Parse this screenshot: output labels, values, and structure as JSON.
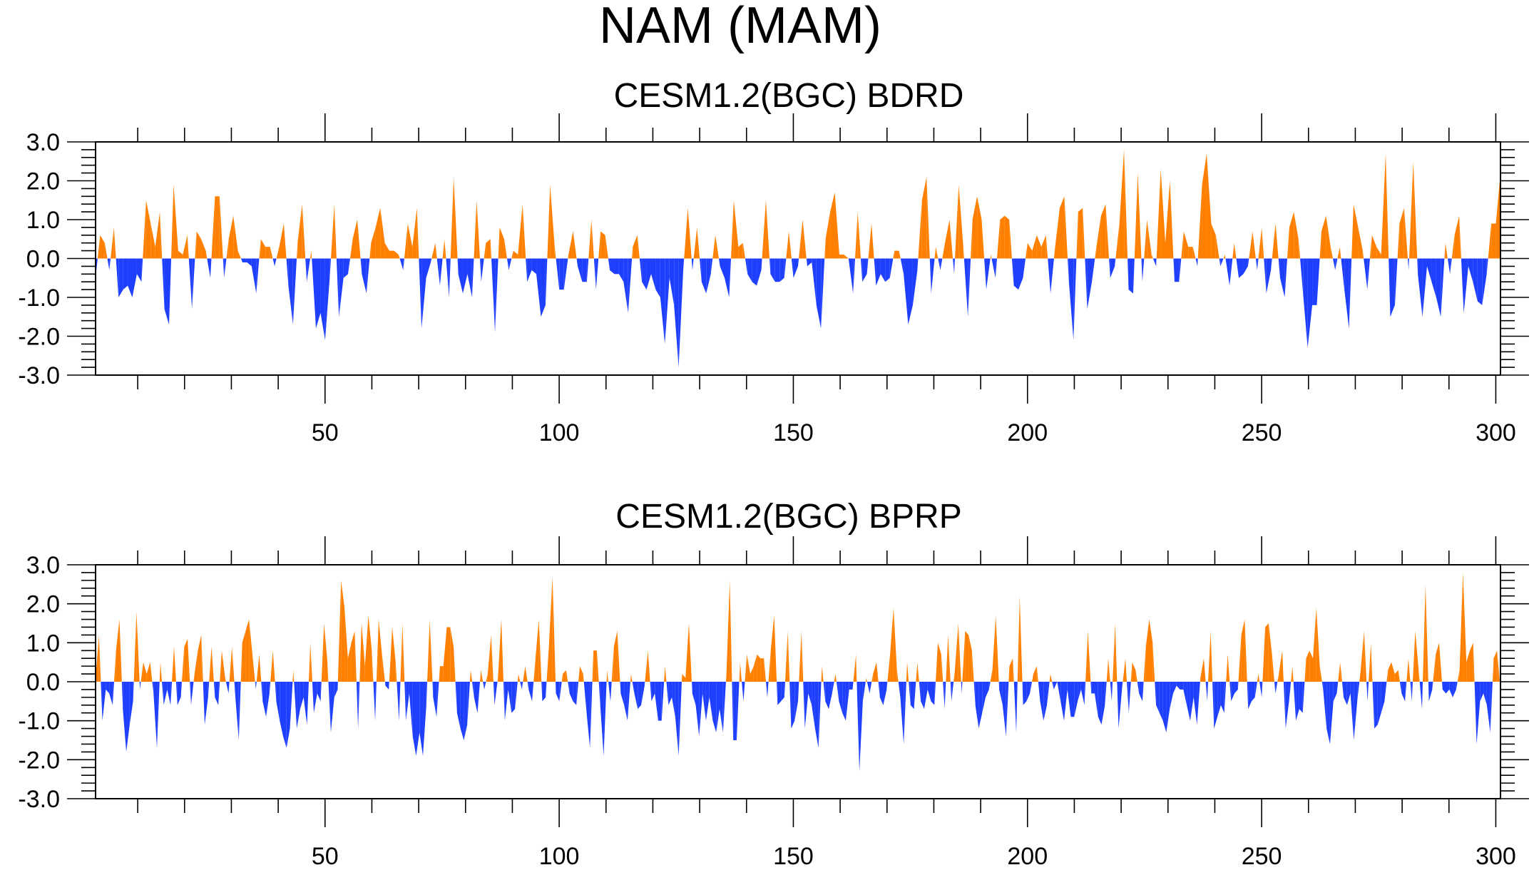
{
  "figure": {
    "title": "NAM (MAM)"
  },
  "colors": {
    "positive": "#ff8000",
    "negative": "#1f3fff",
    "axes": "#000000"
  },
  "chart_data": [
    {
      "type": "area",
      "title": "CESM1.2(BGC) BDRD",
      "xlabel": "",
      "ylabel": "",
      "xlim": [
        1,
        301
      ],
      "ylim": [
        -3.0,
        3.0
      ],
      "xticks": [
        50,
        100,
        150,
        200,
        250,
        300
      ],
      "yticks": [
        3.0,
        2.0,
        1.0,
        0.0,
        -1.0,
        -2.0,
        -3.0
      ],
      "ytick_labels": [
        "3.0",
        "2.0",
        "1.0",
        "0.0",
        "-1.0",
        "-2.0",
        "-3.0"
      ],
      "xtick_labels": [
        "50",
        "100",
        "150",
        "200",
        "250",
        "300"
      ],
      "grid": false,
      "fill": {
        "above_zero": "#ff8000",
        "below_zero": "#1f3fff"
      },
      "series": [
        {
          "x_start": 1,
          "values": [
            -0.5,
            0.6,
            0.4,
            -0.3,
            0.8,
            -1.0,
            -0.8,
            -0.7,
            -1.0,
            -0.4,
            -0.6,
            1.5,
            0.9,
            0.3,
            1.2,
            -1.3,
            -1.7,
            1.9,
            0.2,
            0.1,
            0.6,
            -1.3,
            0.7,
            0.5,
            0.2,
            -0.5,
            1.6,
            1.6,
            -0.5,
            0.5,
            1.1,
            0.2,
            -0.1,
            -0.1,
            -0.2,
            -0.9,
            0.5,
            0.3,
            0.3,
            -0.2,
            0.3,
            0.9,
            -0.7,
            -1.7,
            0.4,
            1.4,
            -0.6,
            0.2,
            -1.8,
            -1.4,
            -2.1,
            -0.5,
            1.4,
            -1.5,
            -0.5,
            -0.4,
            0.5,
            1.0,
            -0.4,
            -0.9,
            0.4,
            0.8,
            1.3,
            0.4,
            0.2,
            0.2,
            0.1,
            -0.3,
            0.9,
            0.3,
            1.3,
            -1.8,
            -0.5,
            -0.1,
            0.4,
            -0.7,
            0.5,
            -1.0,
            2.1,
            -0.4,
            -0.9,
            -0.4,
            -1.0,
            1.5,
            -0.6,
            0.4,
            0.5,
            -1.9,
            0.8,
            0.5,
            -0.3,
            0.2,
            0.1,
            1.4,
            -0.6,
            -0.3,
            -0.4,
            -1.5,
            -1.2,
            1.9,
            0.3,
            -0.8,
            -0.8,
            0.1,
            0.7,
            -0.2,
            -0.6,
            -0.6,
            1.0,
            -0.8,
            0.7,
            0.6,
            -0.3,
            -0.4,
            -0.4,
            -0.6,
            -1.4,
            0.3,
            0.6,
            -0.6,
            -0.8,
            -0.4,
            -0.8,
            -1.0,
            -2.2,
            -0.5,
            -1.2,
            -2.8,
            -0.3,
            1.3,
            -0.3,
            0.8,
            -0.6,
            -0.9,
            -0.4,
            0.6,
            -0.2,
            -0.5,
            -1.0,
            1.5,
            0.3,
            0.4,
            -0.4,
            -0.6,
            -0.7,
            -0.3,
            1.5,
            -0.4,
            -0.6,
            -0.6,
            -0.5,
            0.7,
            -0.5,
            -0.2,
            1.0,
            -0.2,
            -0.1,
            -1.2,
            -1.8,
            0.5,
            1.2,
            1.7,
            0.1,
            0.1,
            0.0,
            -0.9,
            1.2,
            -0.6,
            -0.4,
            0.9,
            -0.7,
            -0.4,
            -0.6,
            -0.5,
            0.2,
            0.2,
            -0.4,
            -1.7,
            -1.2,
            -0.3,
            1.5,
            2.1,
            -0.9,
            0.3,
            -0.3,
            0.4,
            1.0,
            -0.4,
            1.9,
            0.3,
            -1.5,
            1.0,
            1.6,
            1.0,
            -0.8,
            0.1,
            -0.5,
            1.0,
            1.1,
            1.0,
            -0.7,
            -0.8,
            -0.5,
            0.4,
            0.2,
            0.6,
            0.3,
            0.6,
            -0.9,
            0.3,
            1.3,
            1.6,
            -0.6,
            -2.1,
            1.2,
            1.3,
            -1.3,
            -0.6,
            0.3,
            1.1,
            1.4,
            -0.5,
            -0.2,
            0.9,
            2.8,
            -0.8,
            -0.9,
            2.2,
            -0.6,
            1.0,
            0.1,
            -0.2,
            2.3,
            0.4,
            2.0,
            -0.6,
            -0.6,
            0.7,
            0.3,
            0.3,
            -0.2,
            1.9,
            2.7,
            0.9,
            0.6,
            -0.2,
            0.1,
            -0.7,
            0.4,
            -0.5,
            -0.4,
            -0.2,
            0.7,
            -0.3,
            0.8,
            -0.9,
            -0.3,
            0.9,
            -0.5,
            -1.0,
            0.8,
            1.2,
            0.5,
            -0.9,
            -2.3,
            -1.2,
            -1.2,
            0.7,
            1.1,
            0.3,
            -0.3,
            0.3,
            -0.8,
            -1.8,
            1.4,
            0.8,
            0.2,
            -0.8,
            0.6,
            0.3,
            0.1,
            2.7,
            -1.5,
            -1.2,
            0.9,
            1.3,
            -0.3,
            2.5,
            -0.4,
            -1.5,
            -0.2,
            -0.6,
            -1.0,
            -1.5,
            0.4,
            -0.4,
            0.6,
            1.1,
            -1.4,
            -0.2,
            -0.6,
            -1.1,
            -1.2,
            -0.4,
            0.9,
            0.9,
            2.2
          ]
        }
      ]
    },
    {
      "type": "area",
      "title": "CESM1.2(BGC) BPRP",
      "xlabel": "",
      "ylabel": "",
      "xlim": [
        1,
        301
      ],
      "ylim": [
        -3.0,
        3.0
      ],
      "xticks": [
        50,
        100,
        150,
        200,
        250,
        300
      ],
      "yticks": [
        3.0,
        2.0,
        1.0,
        0.0,
        -1.0,
        -2.0,
        -3.0
      ],
      "ytick_labels": [
        "3.0",
        "2.0",
        "1.0",
        "0.0",
        "-1.0",
        "-2.0",
        "-3.0"
      ],
      "xtick_labels": [
        "50",
        "100",
        "150",
        "200",
        "250",
        "300"
      ],
      "grid": false,
      "fill": {
        "above_zero": "#ff8000",
        "below_zero": "#1f3fff"
      },
      "series": [
        {
          "x_start": 1,
          "values": [
            0.1,
            1.2,
            -1.0,
            -0.2,
            -0.3,
            -0.6,
            0.8,
            1.6,
            -0.7,
            -1.8,
            -1.1,
            -0.5,
            1.8,
            -0.2,
            0.5,
            0.2,
            0.5,
            -0.3,
            -1.7,
            0.5,
            -0.6,
            -0.2,
            -0.6,
            0.9,
            -0.6,
            -0.4,
            0.9,
            1.1,
            -0.6,
            0.2,
            0.8,
            1.2,
            -1.1,
            -0.4,
            0.9,
            -0.4,
            -0.6,
            0.8,
            0.1,
            -0.3,
            0.9,
            -0.4,
            -1.5,
            1.0,
            1.3,
            1.6,
            0.7,
            -0.2,
            0.7,
            -0.5,
            -0.9,
            -0.3,
            0.8,
            -0.5,
            -1.0,
            -1.4,
            -1.7,
            -1.2,
            0.3,
            -1.2,
            -0.7,
            -0.4,
            -1.1,
            1.0,
            -0.8,
            -0.3,
            -0.5,
            1.5,
            0.5,
            -1.3,
            -0.4,
            -0.2,
            2.6,
            1.9,
            0.6,
            1.0,
            1.3,
            -1.2,
            1.5,
            0.4,
            1.7,
            0.8,
            -1.0,
            1.6,
            0.7,
            -0.1,
            -0.2,
            1.4,
            0.5,
            -1.0,
            1.5,
            -1.0,
            -0.3,
            -1.4,
            -1.9,
            -1.3,
            -1.9,
            -0.6,
            1.6,
            -0.4,
            -0.9,
            0.4,
            0.4,
            1.4,
            1.4,
            0.9,
            -0.8,
            -1.2,
            -1.5,
            -1.1,
            0.3,
            -0.4,
            -0.8,
            0.3,
            -0.2,
            0.2,
            1.2,
            -0.6,
            0.1,
            1.6,
            -1.0,
            -0.2,
            -0.8,
            -0.7,
            0.2,
            -0.2,
            0.4,
            -0.2,
            -0.5,
            0.6,
            1.6,
            -0.5,
            -0.4,
            1.0,
            2.7,
            -0.3,
            -0.5,
            0.2,
            0.3,
            -0.3,
            -0.5,
            -0.6,
            0.4,
            0.2,
            -0.8,
            -1.7,
            0.8,
            0.8,
            -0.6,
            -1.9,
            0.3,
            -0.5,
            0.9,
            1.3,
            -0.3,
            -0.6,
            -1.0,
            0.2,
            -0.3,
            -0.7,
            -0.6,
            -0.1,
            0.8,
            -0.5,
            -0.3,
            -1.0,
            -1.0,
            0.4,
            -0.6,
            -0.4,
            -0.9,
            -1.9,
            0.2,
            0.1,
            1.5,
            -0.3,
            -0.6,
            -1.4,
            -0.3,
            -1.0,
            -0.4,
            -1.0,
            -1.3,
            -0.7,
            -1.3,
            0.2,
            2.6,
            -1.5,
            -1.5,
            0.5,
            -0.5,
            0.7,
            0.2,
            0.4,
            0.7,
            0.6,
            0.6,
            -0.4,
            0.8,
            1.7,
            -0.6,
            -0.5,
            -0.4,
            1.3,
            -1.2,
            -1.0,
            -0.5,
            1.3,
            -1.2,
            -0.3,
            -0.6,
            -1.2,
            -1.7,
            0.4,
            -0.5,
            -0.7,
            -0.3,
            0.2,
            -0.5,
            -0.8,
            -1.0,
            -0.2,
            -0.2,
            0.7,
            -2.3,
            -0.5,
            0.1,
            -0.3,
            0.2,
            0.5,
            -0.4,
            -0.6,
            -0.2,
            0.7,
            1.9,
            0.3,
            -0.4,
            -1.6,
            0.5,
            -0.6,
            -0.7,
            0.5,
            -0.5,
            -0.7,
            -0.2,
            -0.5,
            -0.6,
            1.0,
            0.7,
            -0.7,
            1.2,
            -0.5,
            0.3,
            1.5,
            -0.3,
            1.3,
            1.2,
            0.8,
            -0.6,
            -1.2,
            -0.8,
            -0.4,
            -0.2,
            0.3,
            1.7,
            -0.2,
            -0.6,
            -1.4,
            0.4,
            0.6,
            -1.3,
            2.2,
            -0.6,
            -0.5,
            -0.3,
            0.2,
            0.4,
            -0.5,
            -1.0,
            -0.6,
            0.2,
            -0.2,
            0.0,
            -0.5,
            -1.0,
            -0.2,
            -0.9,
            -0.9,
            -0.5,
            -0.2,
            -0.6,
            1.3,
            -0.3,
            -0.3,
            -0.9,
            -1.1,
            -0.6,
            0.6,
            -0.5,
            1.5,
            -1.2,
            -0.2,
            0.6,
            -0.8,
            0.5,
            0.3,
            -0.3,
            -0.5,
            0.9,
            1.6,
            1.0,
            -0.6,
            -0.8,
            -1.0,
            -1.3,
            -0.7,
            -0.3,
            -0.1,
            -0.2,
            -0.2,
            -0.6,
            -1.0,
            -0.4,
            -1.1,
            0.1,
            0.6,
            -0.5,
            1.3,
            -1.2,
            -0.9,
            -0.6,
            -0.8,
            0.7,
            -0.5,
            -0.3,
            -0.2,
            1.2,
            1.6,
            -0.7,
            -0.5,
            -0.4,
            0.2,
            -0.4,
            1.4,
            1.5,
            0.7,
            -0.3,
            0.2,
            0.8,
            -1.2,
            -0.5,
            0.4,
            -1.0,
            -0.7,
            -0.8,
            0.6,
            0.8,
            0.6,
            1.9,
            0.4,
            -0.2,
            -1.2,
            -1.6,
            -0.5,
            -0.3,
            0.5,
            -0.4,
            -0.6,
            -0.3,
            -1.5,
            -0.5,
            0.3,
            1.3,
            -0.5,
            1.0,
            -1.2,
            -1.1,
            -0.8,
            -0.5,
            0.3,
            0.5,
            0.2,
            0.3,
            -0.3,
            -0.5,
            0.6,
            -0.5,
            1.3,
            0.3,
            -0.7,
            2.5,
            -0.5,
            -0.2,
            0.7,
            1.0,
            -0.2,
            -0.3,
            -0.2,
            -0.4,
            -0.2,
            0.3,
            2.8,
            0.5,
            0.8,
            1.0,
            -1.6,
            -0.5,
            -0.3,
            -0.6,
            -1.3,
            0.6,
            0.8,
            -0.2
          ]
        }
      ]
    }
  ]
}
